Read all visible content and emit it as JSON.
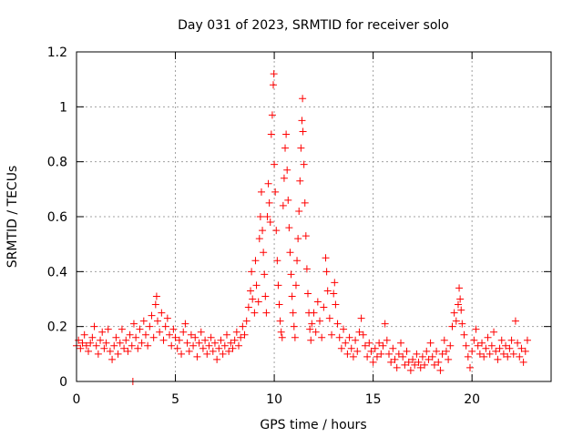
{
  "chart_data": {
    "type": "scatter",
    "title": "Day 031 of 2023, SRMTID for receiver solo",
    "xlabel": "GPS time / hours",
    "ylabel": "SRMTID / TECUs",
    "xlim": [
      0,
      24
    ],
    "ylim": [
      0,
      1.2
    ],
    "x_ticks": [
      0,
      5,
      10,
      15,
      20
    ],
    "x_tick_labels": [
      "0",
      "5",
      "10",
      "15",
      "20"
    ],
    "y_ticks": [
      0,
      0.2,
      0.4,
      0.6,
      0.8,
      1.0,
      1.2
    ],
    "y_tick_labels": [
      "0",
      "0.2",
      "0.4",
      "0.6",
      "0.8",
      "1",
      "1.2"
    ],
    "grid": true,
    "series": [
      {
        "name": "SRMTID",
        "marker": "+",
        "color": "#ff0000",
        "points": [
          [
            0.0,
            0.13
          ],
          [
            0.1,
            0.15
          ],
          [
            0.2,
            0.12
          ],
          [
            0.3,
            0.14
          ],
          [
            0.4,
            0.17
          ],
          [
            0.5,
            0.13
          ],
          [
            0.6,
            0.11
          ],
          [
            0.7,
            0.14
          ],
          [
            0.8,
            0.16
          ],
          [
            0.9,
            0.2
          ],
          [
            1.0,
            0.13
          ],
          [
            1.1,
            0.1
          ],
          [
            1.2,
            0.15
          ],
          [
            1.3,
            0.18
          ],
          [
            1.4,
            0.12
          ],
          [
            1.5,
            0.14
          ],
          [
            1.6,
            0.19
          ],
          [
            1.7,
            0.11
          ],
          [
            1.8,
            0.08
          ],
          [
            1.9,
            0.13
          ],
          [
            2.0,
            0.16
          ],
          [
            2.1,
            0.1
          ],
          [
            2.2,
            0.14
          ],
          [
            2.3,
            0.19
          ],
          [
            2.4,
            0.12
          ],
          [
            2.5,
            0.15
          ],
          [
            2.6,
            0.11
          ],
          [
            2.7,
            0.17
          ],
          [
            2.8,
            0.13
          ],
          [
            2.9,
            0.21
          ],
          [
            2.85,
            0.0
          ],
          [
            3.0,
            0.16
          ],
          [
            3.1,
            0.12
          ],
          [
            3.2,
            0.19
          ],
          [
            3.3,
            0.14
          ],
          [
            3.4,
            0.22
          ],
          [
            3.5,
            0.17
          ],
          [
            3.6,
            0.13
          ],
          [
            3.7,
            0.2
          ],
          [
            3.8,
            0.24
          ],
          [
            3.9,
            0.16
          ],
          [
            4.0,
            0.28
          ],
          [
            4.05,
            0.31
          ],
          [
            4.1,
            0.22
          ],
          [
            4.2,
            0.18
          ],
          [
            4.3,
            0.25
          ],
          [
            4.4,
            0.15
          ],
          [
            4.5,
            0.2
          ],
          [
            4.6,
            0.23
          ],
          [
            4.7,
            0.17
          ],
          [
            4.8,
            0.13
          ],
          [
            4.9,
            0.19
          ],
          [
            5.0,
            0.16
          ],
          [
            5.1,
            0.12
          ],
          [
            5.2,
            0.15
          ],
          [
            5.3,
            0.1
          ],
          [
            5.4,
            0.18
          ],
          [
            5.5,
            0.21
          ],
          [
            5.6,
            0.14
          ],
          [
            5.7,
            0.11
          ],
          [
            5.8,
            0.17
          ],
          [
            5.9,
            0.13
          ],
          [
            6.0,
            0.16
          ],
          [
            6.1,
            0.09
          ],
          [
            6.2,
            0.14
          ],
          [
            6.3,
            0.18
          ],
          [
            6.4,
            0.12
          ],
          [
            6.5,
            0.15
          ],
          [
            6.6,
            0.1
          ],
          [
            6.7,
            0.13
          ],
          [
            6.8,
            0.16
          ],
          [
            6.9,
            0.11
          ],
          [
            7.0,
            0.14
          ],
          [
            7.1,
            0.08
          ],
          [
            7.2,
            0.12
          ],
          [
            7.3,
            0.15
          ],
          [
            7.4,
            0.1
          ],
          [
            7.5,
            0.13
          ],
          [
            7.6,
            0.17
          ],
          [
            7.7,
            0.11
          ],
          [
            7.8,
            0.14
          ],
          [
            7.9,
            0.12
          ],
          [
            8.0,
            0.15
          ],
          [
            8.1,
            0.18
          ],
          [
            8.2,
            0.13
          ],
          [
            8.3,
            0.16
          ],
          [
            8.4,
            0.2
          ],
          [
            8.5,
            0.17
          ],
          [
            8.6,
            0.22
          ],
          [
            8.7,
            0.27
          ],
          [
            8.8,
            0.33
          ],
          [
            8.85,
            0.4
          ],
          [
            8.9,
            0.3
          ],
          [
            9.0,
            0.25
          ],
          [
            9.05,
            0.44
          ],
          [
            9.1,
            0.35
          ],
          [
            9.2,
            0.29
          ],
          [
            9.25,
            0.52
          ],
          [
            9.3,
            0.6
          ],
          [
            9.35,
            0.69
          ],
          [
            9.4,
            0.55
          ],
          [
            9.45,
            0.47
          ],
          [
            9.5,
            0.39
          ],
          [
            9.55,
            0.31
          ],
          [
            9.6,
            0.25
          ],
          [
            9.65,
            0.6
          ],
          [
            9.7,
            0.72
          ],
          [
            9.75,
            0.65
          ],
          [
            9.8,
            0.58
          ],
          [
            9.85,
            0.9
          ],
          [
            9.9,
            0.97
          ],
          [
            9.95,
            1.08
          ],
          [
            9.98,
            1.12
          ],
          [
            10.0,
            0.79
          ],
          [
            10.05,
            0.69
          ],
          [
            10.1,
            0.55
          ],
          [
            10.15,
            0.44
          ],
          [
            10.2,
            0.35
          ],
          [
            10.25,
            0.28
          ],
          [
            10.3,
            0.22
          ],
          [
            10.35,
            0.18
          ],
          [
            10.4,
            0.16
          ],
          [
            10.45,
            0.64
          ],
          [
            10.5,
            0.74
          ],
          [
            10.55,
            0.85
          ],
          [
            10.6,
            0.9
          ],
          [
            10.65,
            0.77
          ],
          [
            10.7,
            0.66
          ],
          [
            10.75,
            0.56
          ],
          [
            10.8,
            0.47
          ],
          [
            10.85,
            0.39
          ],
          [
            10.9,
            0.31
          ],
          [
            10.95,
            0.25
          ],
          [
            11.0,
            0.2
          ],
          [
            11.05,
            0.16
          ],
          [
            11.1,
            0.35
          ],
          [
            11.15,
            0.44
          ],
          [
            11.2,
            0.52
          ],
          [
            11.25,
            0.62
          ],
          [
            11.3,
            0.73
          ],
          [
            11.35,
            0.85
          ],
          [
            11.4,
            0.95
          ],
          [
            11.43,
            1.03
          ],
          [
            11.45,
            0.91
          ],
          [
            11.5,
            0.79
          ],
          [
            11.55,
            0.65
          ],
          [
            11.6,
            0.53
          ],
          [
            11.65,
            0.41
          ],
          [
            11.7,
            0.32
          ],
          [
            11.75,
            0.25
          ],
          [
            11.8,
            0.19
          ],
          [
            11.85,
            0.15
          ],
          [
            11.9,
            0.21
          ],
          [
            12.0,
            0.25
          ],
          [
            12.1,
            0.18
          ],
          [
            12.2,
            0.29
          ],
          [
            12.3,
            0.22
          ],
          [
            12.4,
            0.16
          ],
          [
            12.5,
            0.27
          ],
          [
            12.6,
            0.45
          ],
          [
            12.65,
            0.4
          ],
          [
            12.7,
            0.33
          ],
          [
            12.8,
            0.23
          ],
          [
            12.9,
            0.17
          ],
          [
            13.0,
            0.32
          ],
          [
            13.05,
            0.36
          ],
          [
            13.1,
            0.28
          ],
          [
            13.2,
            0.21
          ],
          [
            13.3,
            0.16
          ],
          [
            13.4,
            0.12
          ],
          [
            13.5,
            0.19
          ],
          [
            13.6,
            0.14
          ],
          [
            13.7,
            0.1
          ],
          [
            13.8,
            0.16
          ],
          [
            13.9,
            0.12
          ],
          [
            14.0,
            0.09
          ],
          [
            14.1,
            0.15
          ],
          [
            14.2,
            0.11
          ],
          [
            14.3,
            0.18
          ],
          [
            14.4,
            0.23
          ],
          [
            14.5,
            0.17
          ],
          [
            14.6,
            0.13
          ],
          [
            14.7,
            0.09
          ],
          [
            14.8,
            0.14
          ],
          [
            14.9,
            0.11
          ],
          [
            15.0,
            0.07
          ],
          [
            15.1,
            0.12
          ],
          [
            15.2,
            0.09
          ],
          [
            15.3,
            0.14
          ],
          [
            15.4,
            0.1
          ],
          [
            15.5,
            0.13
          ],
          [
            15.6,
            0.21
          ],
          [
            15.7,
            0.15
          ],
          [
            15.8,
            0.1
          ],
          [
            15.9,
            0.07
          ],
          [
            16.0,
            0.12
          ],
          [
            16.1,
            0.08
          ],
          [
            16.2,
            0.05
          ],
          [
            16.3,
            0.1
          ],
          [
            16.4,
            0.14
          ],
          [
            16.5,
            0.09
          ],
          [
            16.6,
            0.06
          ],
          [
            16.7,
            0.11
          ],
          [
            16.8,
            0.07
          ],
          [
            16.9,
            0.04
          ],
          [
            17.0,
            0.08
          ],
          [
            17.1,
            0.06
          ],
          [
            17.2,
            0.1
          ],
          [
            17.3,
            0.07
          ],
          [
            17.4,
            0.05
          ],
          [
            17.5,
            0.09
          ],
          [
            17.6,
            0.06
          ],
          [
            17.7,
            0.11
          ],
          [
            17.8,
            0.08
          ],
          [
            17.9,
            0.14
          ],
          [
            18.0,
            0.09
          ],
          [
            18.1,
            0.06
          ],
          [
            18.2,
            0.11
          ],
          [
            18.3,
            0.07
          ],
          [
            18.4,
            0.04
          ],
          [
            18.5,
            0.1
          ],
          [
            18.6,
            0.15
          ],
          [
            18.7,
            0.11
          ],
          [
            18.8,
            0.08
          ],
          [
            18.9,
            0.13
          ],
          [
            19.0,
            0.2
          ],
          [
            19.1,
            0.25
          ],
          [
            19.2,
            0.22
          ],
          [
            19.3,
            0.28
          ],
          [
            19.35,
            0.34
          ],
          [
            19.4,
            0.3
          ],
          [
            19.45,
            0.26
          ],
          [
            19.5,
            0.21
          ],
          [
            19.6,
            0.17
          ],
          [
            19.7,
            0.13
          ],
          [
            19.8,
            0.09
          ],
          [
            19.9,
            0.05
          ],
          [
            20.0,
            0.11
          ],
          [
            20.1,
            0.15
          ],
          [
            20.2,
            0.19
          ],
          [
            20.3,
            0.13
          ],
          [
            20.4,
            0.1
          ],
          [
            20.5,
            0.14
          ],
          [
            20.6,
            0.09
          ],
          [
            20.7,
            0.12
          ],
          [
            20.8,
            0.16
          ],
          [
            20.9,
            0.1
          ],
          [
            21.0,
            0.13
          ],
          [
            21.1,
            0.18
          ],
          [
            21.2,
            0.11
          ],
          [
            21.3,
            0.08
          ],
          [
            21.4,
            0.12
          ],
          [
            21.5,
            0.15
          ],
          [
            21.6,
            0.1
          ],
          [
            21.7,
            0.13
          ],
          [
            21.8,
            0.09
          ],
          [
            21.9,
            0.12
          ],
          [
            22.0,
            0.15
          ],
          [
            22.1,
            0.1
          ],
          [
            22.2,
            0.22
          ],
          [
            22.3,
            0.14
          ],
          [
            22.4,
            0.09
          ],
          [
            22.5,
            0.12
          ],
          [
            22.6,
            0.07
          ],
          [
            22.7,
            0.11
          ],
          [
            22.8,
            0.15
          ]
        ]
      }
    ]
  }
}
